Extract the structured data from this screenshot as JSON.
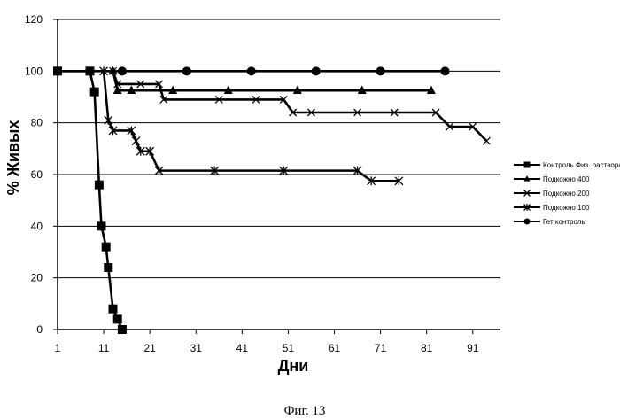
{
  "chart_data": {
    "type": "line",
    "title": "",
    "xlabel": "Дни",
    "ylabel": "% Живых",
    "xlim": [
      1,
      97
    ],
    "ylim": [
      0,
      120
    ],
    "x_ticks": [
      1,
      11,
      21,
      31,
      41,
      51,
      61,
      71,
      81,
      91
    ],
    "y_ticks": [
      0,
      20,
      40,
      60,
      80,
      100,
      120
    ],
    "grid": "horizontal",
    "legend_position": "right",
    "series": [
      {
        "name": "Контроль Физ. раствора",
        "marker": "square",
        "x": [
          1,
          8,
          9,
          10,
          10.5,
          11.5,
          12,
          13,
          14,
          15
        ],
        "y": [
          100,
          100,
          92,
          56,
          40,
          32,
          24,
          8,
          4,
          0
        ]
      },
      {
        "name": "Подкожно 400",
        "marker": "triangle",
        "x": [
          13,
          14,
          17,
          26,
          38,
          53,
          67,
          82
        ],
        "y": [
          100,
          92.5,
          92.5,
          92.5,
          92.5,
          92.5,
          92.5,
          92.5
        ]
      },
      {
        "name": "Подкожно 200",
        "marker": "x",
        "x": [
          13,
          14,
          19,
          23,
          24,
          36,
          44,
          50,
          52,
          56,
          66,
          74,
          83,
          86,
          91,
          94
        ],
        "y": [
          100,
          95,
          95,
          95,
          89,
          89,
          89,
          89,
          84,
          84,
          84,
          84,
          84,
          78.5,
          78.5,
          73
        ]
      },
      {
        "name": "Подкожно 100",
        "marker": "star",
        "x": [
          11,
          12,
          13,
          17,
          18,
          19,
          21,
          23,
          35,
          50,
          66,
          69,
          75
        ],
        "y": [
          100,
          81,
          77,
          77,
          73,
          69,
          69,
          61.5,
          61.5,
          61.5,
          61.5,
          57.5,
          57.5
        ]
      },
      {
        "name": "Гет контроль",
        "marker": "circle",
        "x": [
          1,
          15,
          29,
          43,
          57,
          71,
          85
        ],
        "y": [
          100,
          100,
          100,
          100,
          100,
          100,
          100
        ]
      }
    ]
  },
  "caption": "Фиг. 13"
}
